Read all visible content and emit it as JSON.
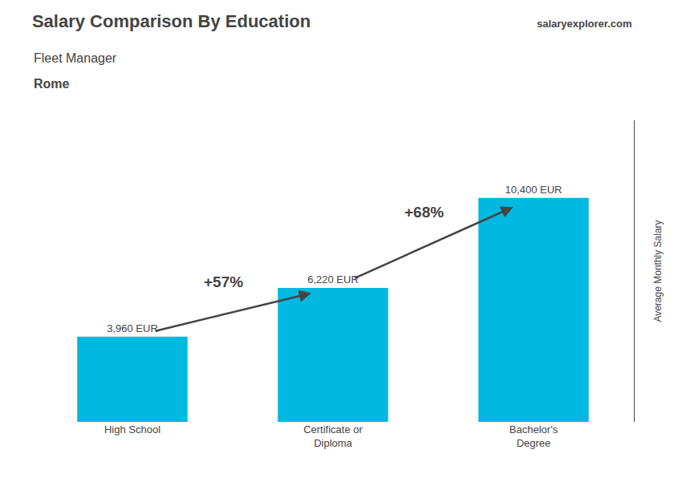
{
  "chart_data": {
    "type": "bar",
    "title": "Salary Comparison By Education",
    "subtitle": [
      "Fleet Manager",
      "Rome"
    ],
    "annotations": [
      "+57%",
      "+68%",
      "salaryexplorer.com"
    ],
    "ylabel": "Average Monthly Salary",
    "categories": [
      "High School",
      "Certificate or\nDiploma",
      "Bachelor's\nDegree"
    ],
    "values": [
      3960,
      6220,
      10400
    ],
    "value_labels": [
      "3,960 EUR",
      "6,220 EUR",
      "10,400 EUR"
    ],
    "data_labels": true,
    "color": "#00b8e0",
    "ylim": [
      0,
      14000
    ],
    "yticks": [],
    "grid": false,
    "tick_labels": "x"
  }
}
